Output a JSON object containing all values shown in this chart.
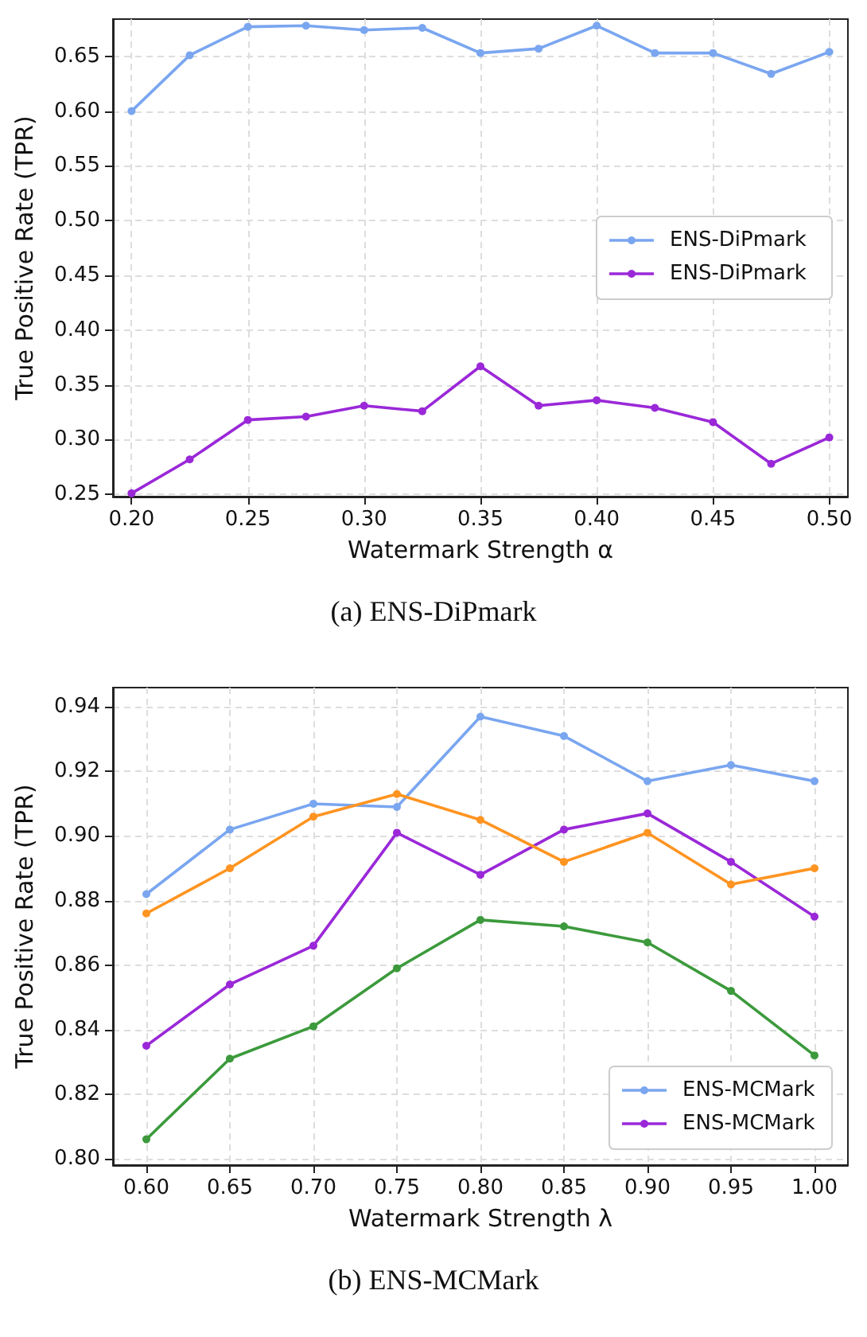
{
  "chart_data": [
    {
      "type": "line",
      "xlabel": "Watermark Strength α",
      "ylabel": "True Positive Rate (TPR)",
      "annotations": [
        "(a) ENS-DiPmark"
      ],
      "x": [
        0.2,
        0.225,
        0.25,
        0.275,
        0.3,
        0.325,
        0.35,
        0.375,
        0.4,
        0.425,
        0.45,
        0.475,
        0.5
      ],
      "series": [
        {
          "name": "ENS-DiPmark",
          "color": "#7aa6f0",
          "values": [
            0.6,
            0.651,
            0.677,
            0.678,
            0.674,
            0.676,
            0.653,
            0.657,
            0.678,
            0.653,
            0.653,
            0.634,
            0.654
          ]
        },
        {
          "name": "ENS-DiPmark",
          "color": "#9a28d8",
          "values": [
            0.251,
            0.282,
            0.318,
            0.321,
            0.331,
            0.326,
            0.367,
            0.331,
            0.336,
            0.329,
            0.316,
            0.278,
            0.302
          ]
        }
      ],
      "xlim": [
        0.192,
        0.508
      ],
      "ylim": [
        0.248,
        0.684
      ],
      "xticks": [
        {
          "value": 0.2,
          "label": "0.20"
        },
        {
          "value": 0.25,
          "label": "0.25"
        },
        {
          "value": 0.3,
          "label": "0.30"
        },
        {
          "value": 0.35,
          "label": "0.35"
        },
        {
          "value": 0.4,
          "label": "0.40"
        },
        {
          "value": 0.45,
          "label": "0.45"
        },
        {
          "value": 0.5,
          "label": "0.50"
        }
      ],
      "yticks": [
        {
          "value": 0.25,
          "label": "0.25"
        },
        {
          "value": 0.3,
          "label": "0.30"
        },
        {
          "value": 0.35,
          "label": "0.35"
        },
        {
          "value": 0.4,
          "label": "0.40"
        },
        {
          "value": 0.45,
          "label": "0.45"
        },
        {
          "value": 0.5,
          "label": "0.50"
        },
        {
          "value": 0.55,
          "label": "0.55"
        },
        {
          "value": 0.6,
          "label": "0.60"
        },
        {
          "value": 0.65,
          "label": "0.65"
        }
      ],
      "grid": true,
      "legend": "right",
      "marker": "circle",
      "line_style": "solid"
    },
    {
      "type": "line",
      "xlabel": "Watermark Strength λ",
      "ylabel": "True Positive Rate (TPR)",
      "annotations": [
        "(b) ENS-MCMark"
      ],
      "x": [
        0.6,
        0.65,
        0.7,
        0.75,
        0.8,
        0.85,
        0.9,
        0.95,
        1.0
      ],
      "series": [
        {
          "name": "ENS-MCMark",
          "color": "#7aa6f0",
          "values": [
            0.882,
            0.902,
            0.91,
            0.909,
            0.937,
            0.931,
            0.917,
            0.922,
            0.917
          ]
        },
        {
          "name": "ENS-MCMark",
          "color": "#9a28d8",
          "values": [
            0.835,
            0.854,
            0.866,
            0.901,
            0.888,
            0.902,
            0.907,
            0.892,
            0.875
          ]
        },
        {
          "color": "#ff9421",
          "values": [
            0.876,
            0.89,
            0.906,
            0.913,
            0.905,
            0.892,
            0.901,
            0.885,
            0.89
          ]
        },
        {
          "color": "#3c9a3c",
          "values": [
            0.806,
            0.831,
            0.841,
            0.859,
            0.874,
            0.872,
            0.867,
            0.852,
            0.832
          ]
        }
      ],
      "xlim": [
        0.58,
        1.02
      ],
      "ylim": [
        0.798,
        0.946
      ],
      "xticks": [
        {
          "value": 0.6,
          "label": "0.60"
        },
        {
          "value": 0.65,
          "label": "0.65"
        },
        {
          "value": 0.7,
          "label": "0.70"
        },
        {
          "value": 0.75,
          "label": "0.75"
        },
        {
          "value": 0.8,
          "label": "0.80"
        },
        {
          "value": 0.85,
          "label": "0.85"
        },
        {
          "value": 0.9,
          "label": "0.90"
        },
        {
          "value": 0.95,
          "label": "0.95"
        },
        {
          "value": 1.0,
          "label": "1.00"
        }
      ],
      "yticks": [
        {
          "value": 0.8,
          "label": "0.80"
        },
        {
          "value": 0.82,
          "label": "0.82"
        },
        {
          "value": 0.84,
          "label": "0.84"
        },
        {
          "value": 0.86,
          "label": "0.86"
        },
        {
          "value": 0.88,
          "label": "0.88"
        },
        {
          "value": 0.9,
          "label": "0.90"
        },
        {
          "value": 0.92,
          "label": "0.92"
        },
        {
          "value": 0.94,
          "label": "0.94"
        }
      ],
      "grid": true,
      "legend": "bottom right",
      "marker": "circle",
      "line_style": "solid"
    }
  ]
}
